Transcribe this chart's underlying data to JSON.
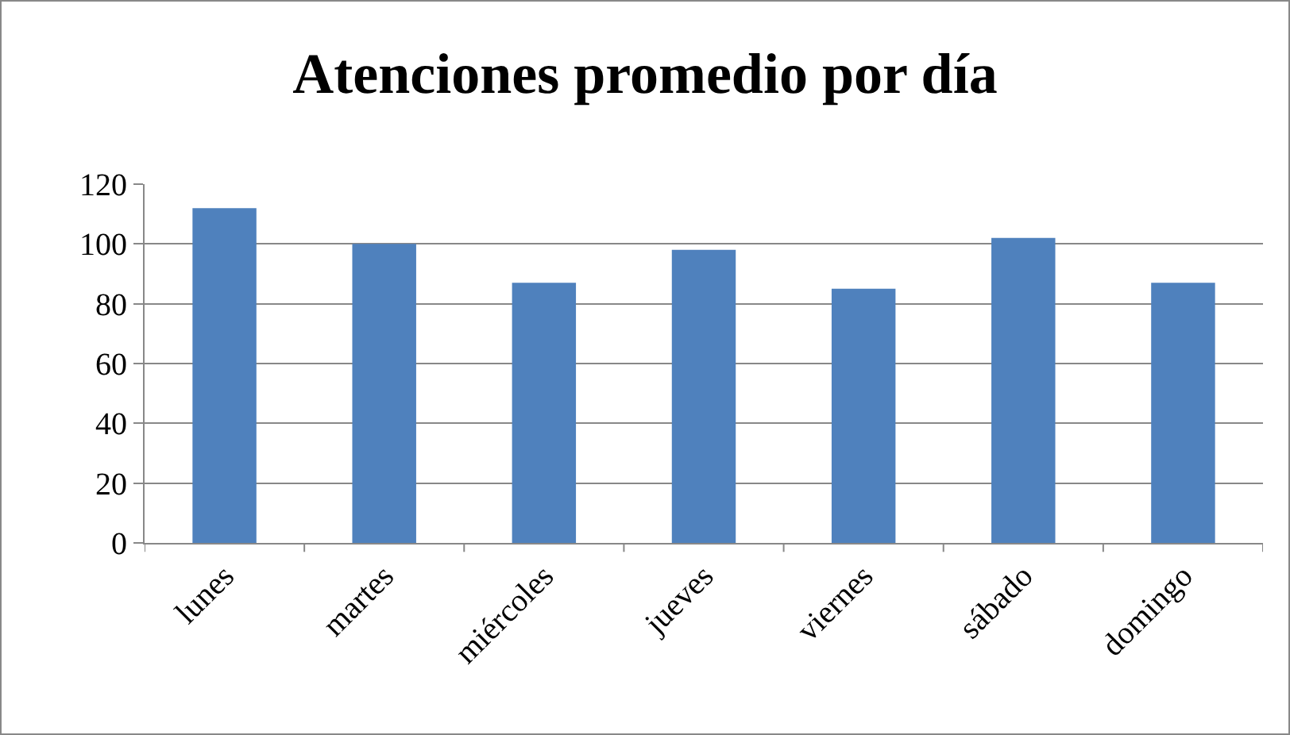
{
  "chart_data": {
    "type": "bar",
    "title": "Atenciones promedio por día",
    "categories": [
      "lunes",
      "martes",
      "miércoles",
      "jueves",
      "viernes",
      "sábado",
      "domingo"
    ],
    "values": [
      112,
      100,
      87,
      98,
      85,
      102,
      87
    ],
    "color": "#4f81bd",
    "ylim": [
      0,
      120
    ],
    "yticks": [
      0,
      20,
      40,
      60,
      80,
      100,
      120
    ],
    "grid": "y"
  }
}
